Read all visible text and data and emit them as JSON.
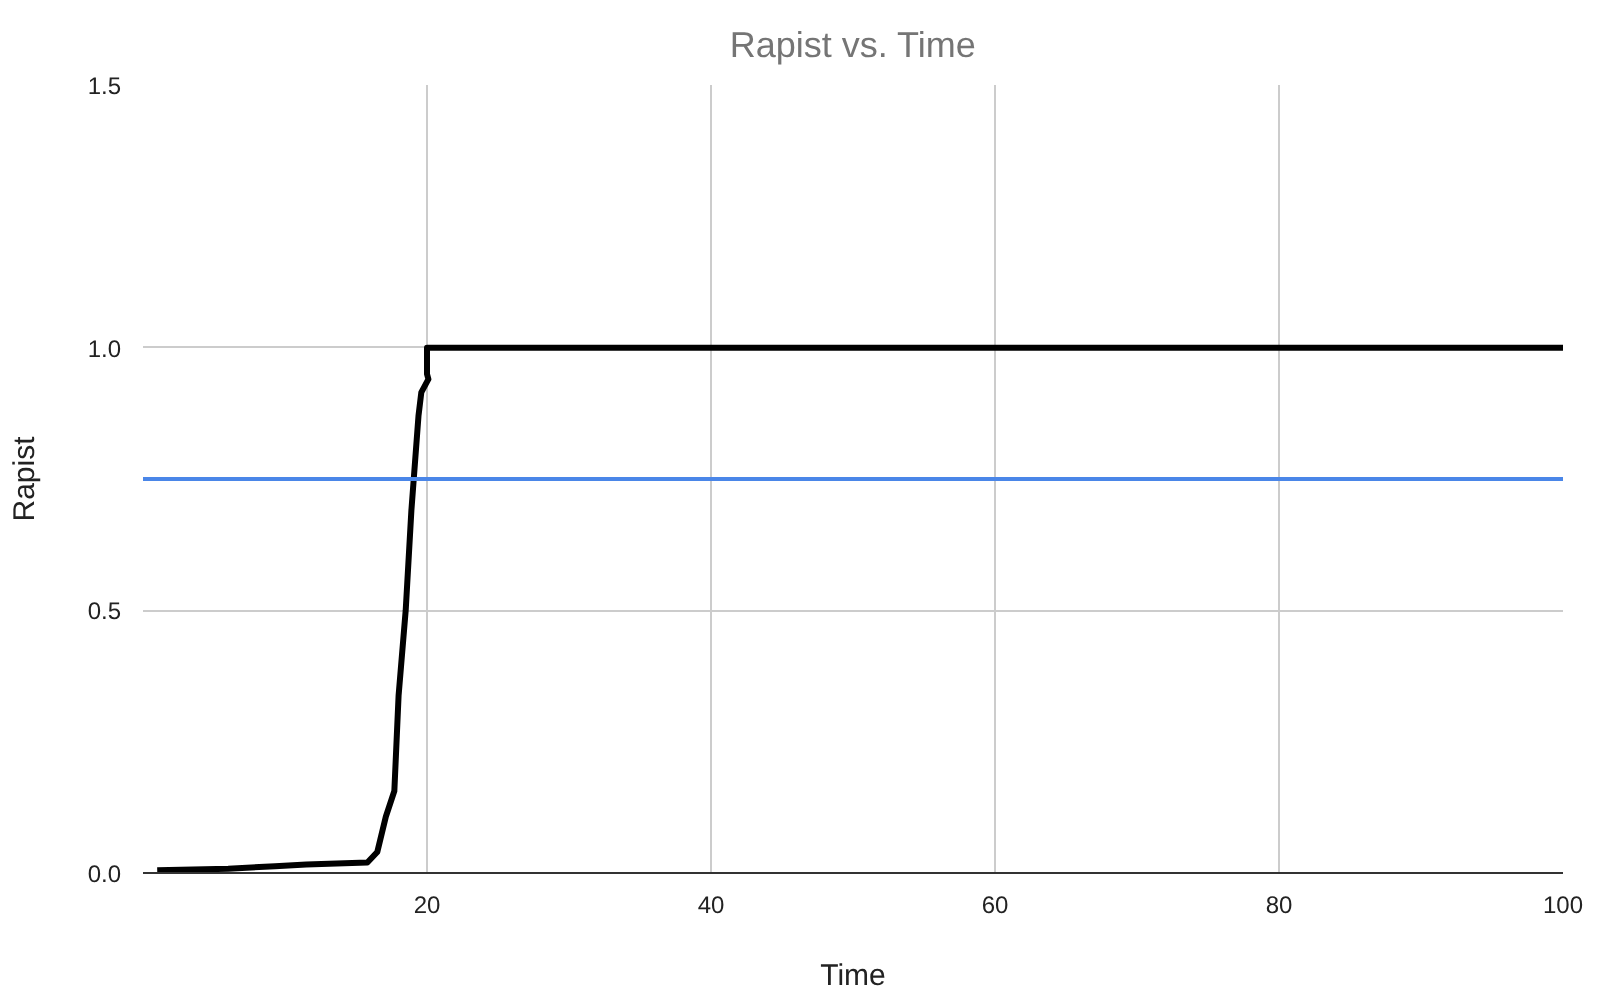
{
  "chart_data": {
    "type": "line",
    "title": "Rapist vs. Time",
    "xlabel": "Time",
    "ylabel": "Rapist",
    "xlim": [
      0,
      100
    ],
    "xticks": [
      20,
      40,
      60,
      80,
      100
    ],
    "ylim": [
      0,
      1.5
    ],
    "yticks": [
      {
        "value": 0,
        "label": "0.0"
      },
      {
        "value": 0.5,
        "label": "0.5"
      },
      {
        "value": 1,
        "label": "1.0"
      },
      {
        "value": 1.5,
        "label": "1.5"
      }
    ],
    "grid": true,
    "marker": "none",
    "line_style": "solid",
    "series": [
      {
        "color": "#000000",
        "x": [
          1,
          6,
          9.3,
          11.5,
          15.8,
          16.5,
          17.1,
          17.7,
          18,
          18.5,
          18.9,
          19.4,
          19.6,
          20.1,
          20,
          20,
          100
        ],
        "values": [
          0.005,
          0.008,
          0.013,
          0.016,
          0.02,
          0.04,
          0.107,
          0.156,
          0.338,
          0.5,
          0.69,
          0.87,
          0.915,
          0.94,
          0.95,
          1,
          1
        ]
      }
    ],
    "ref_lines": [
      {
        "axis": "y",
        "value": 0.75,
        "color": "#4a86e8",
        "line_style": "solid"
      }
    ]
  }
}
